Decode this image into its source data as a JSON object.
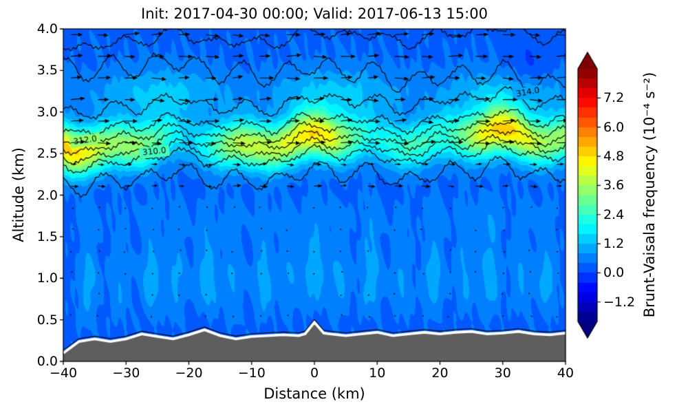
{
  "figure": {
    "title": "Init: 2017-04-30 00:00; Valid: 2017-06-13 15:00",
    "xlabel": "Distance (km)",
    "ylabel": "Altitude (km)",
    "colorbar_label": "Brunt-Vaisala frequency (10⁻⁴ s⁻²)"
  },
  "chart_data": {
    "type": "heatmap",
    "subtype": "vertical cross-section: filled contours of Brunt-Vaisala frequency, potential-temperature contour lines (K), horizontal wind quiver arrows, gray terrain silhouette with white outline",
    "title": "Init: 2017-04-30 00:00; Valid: 2017-06-13 15:00",
    "xlabel": "Distance (km)",
    "ylabel": "Altitude (km)",
    "x_range": [
      -40,
      40
    ],
    "y_range": [
      0.0,
      4.0
    ],
    "x_tick_values": [
      -40,
      -30,
      -20,
      -10,
      0,
      10,
      20,
      30,
      40
    ],
    "x_tick_labels": [
      "−40",
      "−30",
      "−20",
      "−10",
      "0",
      "10",
      "20",
      "30",
      "40"
    ],
    "y_tick_values": [
      0.0,
      0.5,
      1.0,
      1.5,
      2.0,
      2.5,
      3.0,
      3.5,
      4.0
    ],
    "y_tick_labels": [
      "0.0",
      "0.5",
      "1.0",
      "1.5",
      "2.0",
      "2.5",
      "3.0",
      "3.5",
      "4.0"
    ],
    "grid": false,
    "colorbar": {
      "label": "Brunt-Vaisala frequency (10⁻⁴ s⁻²)",
      "tick_values": [
        7.2,
        6.0,
        4.8,
        3.6,
        2.4,
        1.2,
        0.0,
        -1.2
      ],
      "tick_labels": [
        "7.2",
        "6.0",
        "4.8",
        "3.6",
        "2.4",
        "1.2",
        "0.0",
        "−1.2"
      ],
      "vmin": -2.0,
      "vmax": 8.4,
      "level_step": 0.4,
      "colormap": "jet",
      "extend": "both"
    },
    "contour_lines": {
      "field": "potential temperature (K)",
      "labeled_values": [
        310.0,
        312.0,
        314.0
      ],
      "labels": [
        {
          "text": "310.0",
          "x": -25.5,
          "line": 2,
          "rot": -6
        },
        {
          "text": "312.0",
          "x": -36.5,
          "line": 4,
          "rot": -8
        },
        {
          "text": "314.0",
          "x": 34.0,
          "line": 7,
          "rot": -10
        }
      ],
      "lines": [
        {
          "delta": -0.42,
          "amp": 0.1,
          "phase": 0.5,
          "slope": 0
        },
        {
          "delta": -0.2,
          "amp": 0.05,
          "phase": 1.2,
          "slope": 0
        },
        {
          "delta": -0.1,
          "amp": 0.04,
          "phase": 2.0,
          "slope": 0
        },
        {
          "delta": 0.0,
          "amp": 0.04,
          "phase": 2.8,
          "slope": 0
        },
        {
          "delta": 0.1,
          "amp": 0.04,
          "phase": 3.5,
          "slope": 0
        },
        {
          "delta": 0.22,
          "amp": 0.05,
          "phase": 4.1,
          "slope": 0
        },
        {
          "delta": 0.45,
          "amp": 0.07,
          "phase": 4.9,
          "slope": 0
        },
        {
          "delta": 0.66,
          "amp": 0.12,
          "phase": 5.6,
          "slope": -0.004
        },
        {
          "delta": 1.24,
          "amp": 0.06,
          "phase": 3.29,
          "slope": 0
        }
      ]
    },
    "field_model": {
      "background": 0.3,
      "band_center": 2.66,
      "band_trend": 0.0015,
      "band_sigma": 0.28,
      "band_amp_base": 3.0,
      "band_amp_var1": 1.3,
      "band_amp_var2": 0.5,
      "upper_layer_z": 3.25,
      "upper_layer_sigma": 0.3,
      "upper_layer_amp": 0.9,
      "plume_amp": 0.9,
      "plume_width": 1.6,
      "plumes": [
        [
          -36,
          0.7
        ],
        [
          -31,
          0.5
        ],
        [
          -26,
          0.8
        ],
        [
          -22,
          0.6
        ],
        [
          -17,
          0.9
        ],
        [
          -13,
          0.55
        ],
        [
          -8,
          0.75
        ],
        [
          -4,
          0.5
        ],
        [
          0,
          0.85
        ],
        [
          4,
          0.6
        ],
        [
          9,
          0.8
        ],
        [
          14,
          0.55
        ],
        [
          19,
          0.75
        ],
        [
          24,
          0.6
        ],
        [
          28,
          0.8
        ],
        [
          33,
          0.55
        ],
        [
          37,
          0.7
        ]
      ],
      "blob_x": 34,
      "blob_z": 3.5,
      "blob_amp": -0.5,
      "noise": 0.13
    },
    "terrain": {
      "fill_color": "#5e5e5e",
      "outline_color": "#ffffff",
      "profile": [
        [
          -40,
          0.1
        ],
        [
          -37.5,
          0.24
        ],
        [
          -35,
          0.27
        ],
        [
          -32.5,
          0.24
        ],
        [
          -30,
          0.27
        ],
        [
          -27.5,
          0.33
        ],
        [
          -25,
          0.3
        ],
        [
          -22.5,
          0.27
        ],
        [
          -20,
          0.32
        ],
        [
          -17.5,
          0.38
        ],
        [
          -15,
          0.31
        ],
        [
          -12.5,
          0.27
        ],
        [
          -10,
          0.3
        ],
        [
          -7.5,
          0.31
        ],
        [
          -5,
          0.32
        ],
        [
          -2.5,
          0.31
        ],
        [
          -1.5,
          0.33
        ],
        [
          0,
          0.47
        ],
        [
          1.5,
          0.34
        ],
        [
          2.5,
          0.33
        ],
        [
          5,
          0.31
        ],
        [
          7.5,
          0.33
        ],
        [
          10,
          0.35
        ],
        [
          12.5,
          0.31
        ],
        [
          15,
          0.33
        ],
        [
          17.5,
          0.35
        ],
        [
          20,
          0.33
        ],
        [
          22.5,
          0.35
        ],
        [
          25,
          0.36
        ],
        [
          27.5,
          0.33
        ],
        [
          30,
          0.34
        ],
        [
          32.5,
          0.36
        ],
        [
          35,
          0.33
        ],
        [
          37.5,
          0.32
        ],
        [
          40,
          0.34
        ]
      ]
    },
    "quiver": {
      "color": "#000000",
      "x_start": -38.8,
      "x_step": 4.3,
      "n_cols": 19,
      "z_start": 0.55,
      "z_step": 0.26,
      "n_rows": 14,
      "strong_above_z": 2.45,
      "moderate_above_z": 2.1
    }
  },
  "layout_colors": {
    "background": "#ffffff",
    "axes_color": "#000000"
  }
}
